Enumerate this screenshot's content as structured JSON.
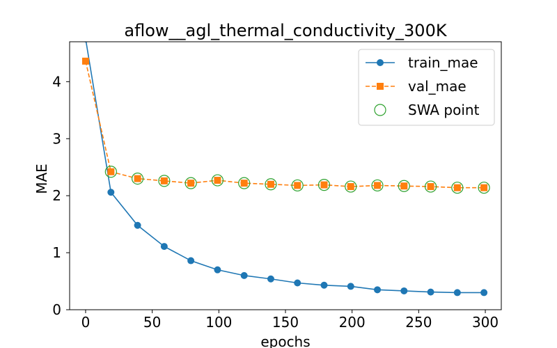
{
  "chart_data": {
    "type": "line",
    "title": "aflow__agl_thermal_conductivity_300K",
    "xlabel": "epochs",
    "ylabel": "MAE",
    "xlim": [
      -12,
      312
    ],
    "ylim": [
      0,
      4.7
    ],
    "xticks": [
      0,
      50,
      100,
      150,
      200,
      250,
      300
    ],
    "yticks": [
      0,
      1,
      2,
      3,
      4
    ],
    "grid": false,
    "legend_position": "top-right",
    "series": [
      {
        "name": "train_mae",
        "color": "#1f77b4",
        "marker": "circle",
        "linestyle": "solid",
        "x": [
          0,
          19,
          39,
          59,
          79,
          99,
          119,
          139,
          159,
          179,
          199,
          219,
          239,
          259,
          279,
          299
        ],
        "values": [
          4.75,
          2.06,
          1.48,
          1.11,
          0.86,
          0.7,
          0.6,
          0.54,
          0.47,
          0.43,
          0.41,
          0.35,
          0.33,
          0.31,
          0.3,
          0.3
        ]
      },
      {
        "name": "val_mae",
        "color": "#ff7f0e",
        "marker": "square",
        "linestyle": "dashed",
        "x": [
          0,
          19,
          39,
          59,
          79,
          99,
          119,
          139,
          159,
          179,
          199,
          219,
          239,
          259,
          279,
          299
        ],
        "values": [
          4.36,
          2.42,
          2.3,
          2.26,
          2.22,
          2.27,
          2.22,
          2.2,
          2.18,
          2.19,
          2.16,
          2.18,
          2.17,
          2.16,
          2.14,
          2.14
        ]
      },
      {
        "name": "SWA point",
        "color": "#2ca02c",
        "marker": "open-circle",
        "linestyle": "none",
        "x": [
          19,
          39,
          59,
          79,
          99,
          119,
          139,
          159,
          179,
          199,
          219,
          239,
          259,
          279,
          299
        ],
        "values": [
          2.42,
          2.3,
          2.26,
          2.22,
          2.27,
          2.22,
          2.2,
          2.18,
          2.19,
          2.16,
          2.18,
          2.17,
          2.16,
          2.14,
          2.14
        ]
      }
    ]
  }
}
